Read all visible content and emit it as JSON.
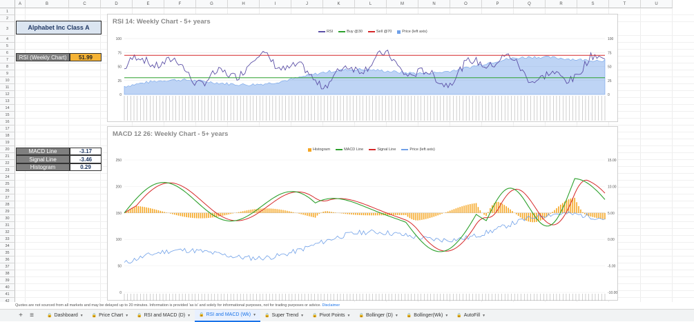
{
  "columns": [
    "A",
    "B",
    "C",
    "D",
    "E",
    "F",
    "G",
    "H",
    "I",
    "J",
    "K",
    "L",
    "M",
    "N",
    "O",
    "P",
    "Q",
    "R",
    "S",
    "T",
    "U"
  ],
  "rows": [
    "1",
    "2",
    "3",
    "4",
    "5",
    "6",
    "7",
    "8",
    "9",
    "10",
    "11",
    "12",
    "13",
    "14",
    "15",
    "16",
    "17",
    "18",
    "19",
    "20",
    "21",
    "22",
    "23",
    "24",
    "25",
    "26",
    "27",
    "28",
    "29",
    "30",
    "31",
    "32",
    "33",
    "34",
    "35",
    "36",
    "37",
    "38",
    "39",
    "40",
    "41",
    "42"
  ],
  "left_panel": {
    "title": "Alphabet Inc Class A",
    "rsi_label": "RSI (Weekly Chart)",
    "rsi_value": "51.99",
    "macd_line_label": "MACD Line",
    "macd_line_value": "-3.17",
    "signal_line_label": "Signal Line",
    "signal_line_value": "-3.46",
    "histogram_label": "Histogram",
    "histogram_value": "0.29"
  },
  "rsi_chart": {
    "title": "RSI 14:  Weekly Chart -  5+ years",
    "legend": [
      "RSI",
      "Buy @30",
      "Sell @70",
      "Price (left axis)"
    ],
    "colors": {
      "rsi": "#5b4fa6",
      "buy": "#2ca02c",
      "sell": "#d62728",
      "price": "#6fa0e8"
    },
    "y_left_ticks": [
      "0",
      "25",
      "50",
      "75",
      "100"
    ],
    "y_right_ticks": [
      "0",
      "25",
      "50",
      "75",
      "100"
    ],
    "buy_level": 30,
    "sell_level": 70
  },
  "macd_chart": {
    "title": "MACD 12 26:  Weekly Chart - 5+ years",
    "legend": [
      "Histogram",
      "MACD Line",
      "Signal Line",
      "Price (left axis)"
    ],
    "colors": {
      "hist": "#f5a623",
      "macd": "#2ca02c",
      "signal": "#d62728",
      "price": "#6fa0e8"
    },
    "y_left_ticks": [
      "0",
      "50",
      "100",
      "150",
      "200",
      "250"
    ],
    "y_right_ticks": [
      "-10.00",
      "-5.00",
      "0.00",
      "5.00",
      "10.00",
      "15.00"
    ]
  },
  "footer_text": "Quotes are not sourced from all markets and may be delayed up to 20 minutes. Information is provided 'as is' and solely for informational purposes, not for trading purposes or advice.",
  "footer_link": "Disclaimer",
  "tabs": [
    {
      "label": "Dashboard",
      "active": false
    },
    {
      "label": "Price Chart",
      "active": false
    },
    {
      "label": "RSI and MACD (D)",
      "active": false
    },
    {
      "label": "RSI and MACD (Wk)",
      "active": true
    },
    {
      "label": "Super Trend",
      "active": false
    },
    {
      "label": "Pivot Points",
      "active": false
    },
    {
      "label": "Bollinger (D)",
      "active": false
    },
    {
      "label": "Bollinger(Wk)",
      "active": false
    },
    {
      "label": "AutoFill",
      "active": false
    }
  ],
  "add_sheet_icon": "+",
  "all_sheets_icon": "≡"
}
